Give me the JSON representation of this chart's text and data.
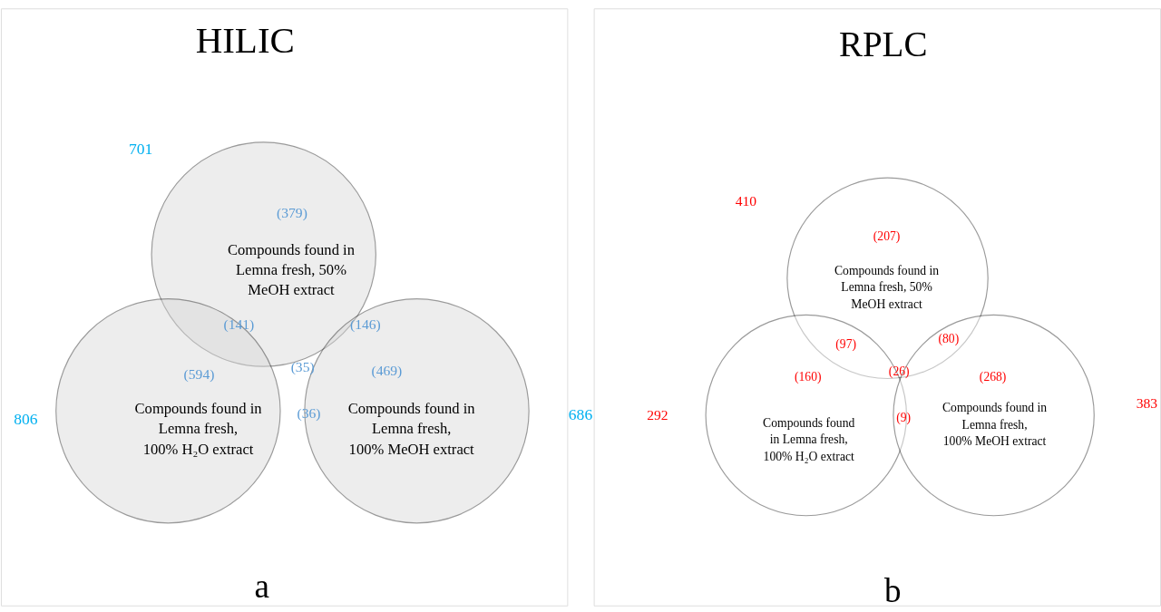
{
  "chart_data": [
    {
      "type": "other",
      "title": "HILIC",
      "categories": [
        "Compounds found in\nLemna fresh, 50%\nMeOH extract",
        "Compounds found in\nLemna fresh,\n100% H₂O extract",
        "Compounds found in\nLemna fresh,\n100% MeOH extract"
      ],
      "colors": [
        "#d9d9d9",
        "#d9d9d9",
        "#d9d9d9"
      ],
      "series": [
        {
          "color": "#00b0f0",
          "values": [
            701,
            806,
            686
          ]
        }
      ],
      "data_labels": true,
      "annotations": [
        "(379)",
        "(594)",
        "(469)",
        "(141)",
        "(146)",
        "(36)",
        "(35)",
        "a"
      ]
    },
    {
      "type": "other",
      "title": "RPLC",
      "categories": [
        "Compounds found in\nLemna fresh, 50%\nMeOH extract",
        "Compounds found\nin Lemna fresh,\n100% H₂O extract",
        "Compounds found in\nLemna fresh,\n100% MeOH extract"
      ],
      "colors": [
        "#ffffff",
        "#ffffff",
        "#ffffff"
      ],
      "series": [
        {
          "color": "#ff0000",
          "values": [
            410,
            292,
            383
          ]
        }
      ],
      "data_labels": true,
      "annotations": [
        "(207)",
        "(160)",
        "(268)",
        "(97)",
        "(80)",
        "(9)",
        "(26)",
        "b"
      ]
    }
  ]
}
